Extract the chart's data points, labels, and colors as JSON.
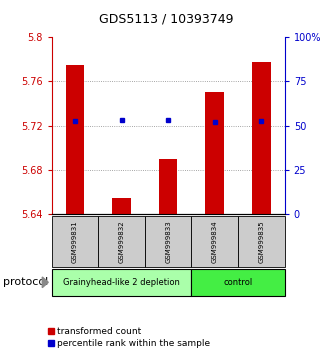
{
  "title": "GDS5113 / 10393749",
  "samples": [
    "GSM999831",
    "GSM999832",
    "GSM999833",
    "GSM999834",
    "GSM999835"
  ],
  "bar_values": [
    5.775,
    5.655,
    5.69,
    5.75,
    5.778
  ],
  "bar_base": 5.64,
  "percentile_values": [
    5.724,
    5.725,
    5.725,
    5.723,
    5.724
  ],
  "bar_color": "#cc0000",
  "percentile_color": "#0000cc",
  "ylim_left": [
    5.64,
    5.8
  ],
  "ylim_right": [
    0,
    100
  ],
  "yticks_left": [
    5.64,
    5.68,
    5.72,
    5.76,
    5.8
  ],
  "yticks_right": [
    0,
    25,
    50,
    75,
    100
  ],
  "ytick_labels_left": [
    "5.64",
    "5.68",
    "5.72",
    "5.76",
    "5.8"
  ],
  "ytick_labels_right": [
    "0",
    "25",
    "50",
    "75",
    "100%"
  ],
  "groups": [
    {
      "label": "Grainyhead-like 2 depletion",
      "start": 0,
      "end": 3,
      "color": "#aaffaa"
    },
    {
      "label": "control",
      "start": 3,
      "end": 5,
      "color": "#44ee44"
    }
  ],
  "protocol_label": "protocol",
  "legend_items": [
    {
      "label": "transformed count",
      "color": "#cc0000"
    },
    {
      "label": "percentile rank within the sample",
      "color": "#0000cc"
    }
  ],
  "grid_color": "#888888",
  "background_color": "#ffffff",
  "sample_row_color": "#cccccc",
  "title_fontsize": 9,
  "tick_fontsize": 7,
  "sample_fontsize": 5,
  "group_fontsize": 6,
  "legend_fontsize": 6.5,
  "protocol_fontsize": 8
}
